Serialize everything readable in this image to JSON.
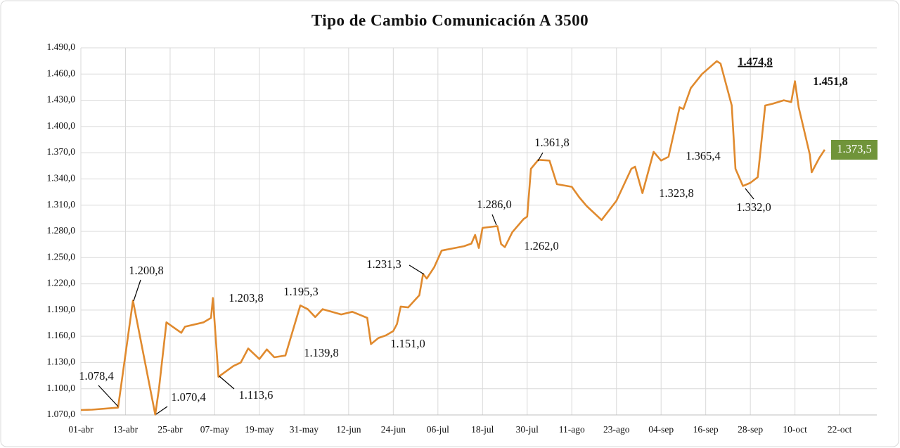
{
  "chart_data": {
    "type": "line",
    "title": "Tipo de Cambio Comunicación A 3500",
    "color": "#e08a2e",
    "grid": true,
    "xlim": [
      0,
      214
    ],
    "xticks": [
      {
        "value": 0,
        "label": "01-abr"
      },
      {
        "value": 12,
        "label": "13-abr"
      },
      {
        "value": 24,
        "label": "25-abr"
      },
      {
        "value": 36,
        "label": "07-may"
      },
      {
        "value": 48,
        "label": "19-may"
      },
      {
        "value": 60,
        "label": "31-may"
      },
      {
        "value": 72,
        "label": "12-jun"
      },
      {
        "value": 84,
        "label": "24-jun"
      },
      {
        "value": 96,
        "label": "06-jul"
      },
      {
        "value": 108,
        "label": "18-jul"
      },
      {
        "value": 120,
        "label": "30-jul"
      },
      {
        "value": 132,
        "label": "11-ago"
      },
      {
        "value": 144,
        "label": "23-ago"
      },
      {
        "value": 156,
        "label": "04-sep"
      },
      {
        "value": 168,
        "label": "16-sep"
      },
      {
        "value": 180,
        "label": "28-sep"
      },
      {
        "value": 192,
        "label": "10-oct"
      },
      {
        "value": 204,
        "label": "22-oct"
      }
    ],
    "ylim": [
      1070,
      1490
    ],
    "yticks": [
      {
        "value": 1070,
        "label": "1.070,0"
      },
      {
        "value": 1100,
        "label": "1.100,0"
      },
      {
        "value": 1130,
        "label": "1.130,0"
      },
      {
        "value": 1160,
        "label": "1.160,0"
      },
      {
        "value": 1190,
        "label": "1.190,0"
      },
      {
        "value": 1220,
        "label": "1.220,0"
      },
      {
        "value": 1250,
        "label": "1.250,0"
      },
      {
        "value": 1280,
        "label": "1.280,0"
      },
      {
        "value": 1310,
        "label": "1.310,0"
      },
      {
        "value": 1340,
        "label": "1.340,0"
      },
      {
        "value": 1370,
        "label": "1.370,0"
      },
      {
        "value": 1400,
        "label": "1.400,0"
      },
      {
        "value": 1430,
        "label": "1.430,0"
      },
      {
        "value": 1460,
        "label": "1.460,0"
      },
      {
        "value": 1490,
        "label": "1.490,0"
      }
    ],
    "x": [
      0,
      3,
      10,
      14,
      20,
      21,
      23,
      27,
      28,
      33,
      35,
      35.5,
      37,
      41,
      43,
      45,
      48,
      50,
      52,
      55,
      59,
      61,
      63,
      65,
      70,
      73,
      77,
      78,
      80,
      82,
      84,
      85,
      86,
      88,
      91,
      92,
      93,
      95,
      97,
      103,
      105,
      106,
      107,
      108,
      112,
      113,
      114,
      116,
      119,
      120,
      121,
      123,
      126,
      128,
      132,
      134,
      136,
      140,
      144,
      148,
      149,
      151,
      154,
      156,
      158,
      161,
      162,
      164,
      167,
      171,
      172,
      175,
      176,
      178,
      180,
      182,
      184,
      186,
      189,
      191,
      192,
      193,
      196,
      196.5,
      198.5,
      200
    ],
    "values": [
      1075.6,
      1076,
      1078.4,
      1200.8,
      1070.4,
      1100,
      1176,
      1164,
      1171,
      1176,
      1181,
      1203.8,
      1113.6,
      1126,
      1130,
      1146,
      1134,
      1145,
      1136,
      1138,
      1195.3,
      1191,
      1182,
      1191,
      1185,
      1188,
      1181,
      1151,
      1158,
      1161,
      1166,
      1174,
      1194,
      1193,
      1207,
      1231.3,
      1226,
      1239,
      1258,
      1263,
      1266,
      1276,
      1261,
      1284,
      1286,
      1265.5,
      1262,
      1279,
      1294,
      1297,
      1351.6,
      1361.8,
      1361,
      1334,
      1331,
      1319,
      1309,
      1293,
      1315,
      1351.6,
      1354,
      1323.8,
      1371,
      1361,
      1365.4,
      1422,
      1420,
      1444,
      1460,
      1474.8,
      1472,
      1424,
      1351.6,
      1332,
      1335.5,
      1342,
      1424,
      1426,
      1430,
      1428,
      1451.8,
      1422,
      1367.7,
      1347.6,
      1363.7,
      1373.5
    ],
    "annotations": [
      "1.078,4",
      "1.200,8",
      "1.070,4",
      "1.203,8",
      "1.113,6",
      "1.195,3",
      "1.139,8",
      "1.231,3",
      "1.151,0",
      "1.286,0",
      "1.262,0",
      "1.361,8",
      "1.323,8",
      "1.365,4",
      "1.474,8",
      "1.332,0",
      "1.451,8",
      "1.373,5"
    ]
  }
}
